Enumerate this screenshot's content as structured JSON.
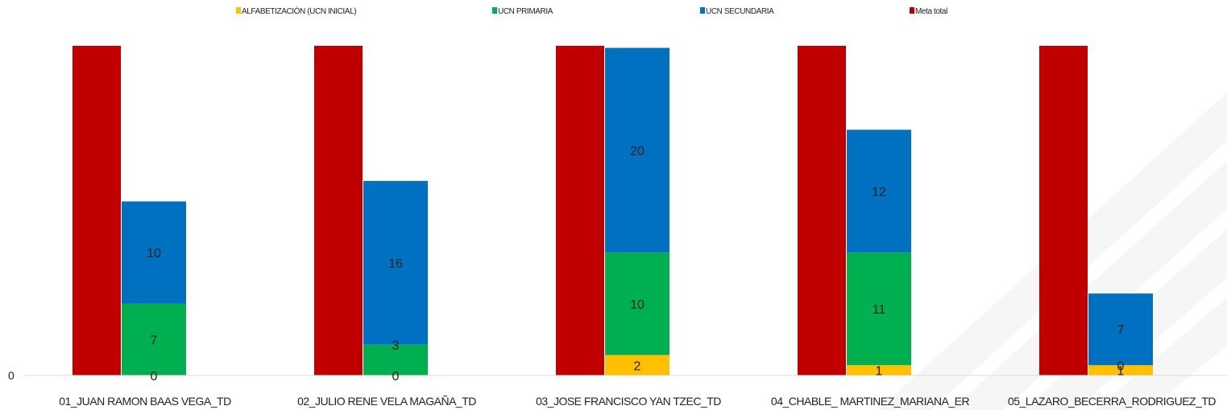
{
  "chart_data": {
    "type": "bar",
    "stacked": true,
    "categories": [
      "01_JUAN RAMON BAAS VEGA_TD",
      "02_JULIO RENE VELA MAGAÑA_TD",
      "03_JOSE FRANCISCO YAN TZEC_TD",
      "04_CHABLE_ MARTINEZ_MARIANA_ER",
      "05_LAZARO_BECERRA_RODRIGUEZ_TD"
    ],
    "series": [
      {
        "name": "ALFABETIZACIÓN (UCN INICIAL)",
        "color": "#FFC000",
        "stack": "avance",
        "values": [
          0,
          0,
          2,
          1,
          1
        ],
        "labels": [
          "0",
          "0",
          "2",
          "1",
          "1"
        ]
      },
      {
        "name": "UCN PRIMARIA",
        "color": "#00B050",
        "stack": "avance",
        "values": [
          7,
          3,
          10,
          11,
          0
        ],
        "labels": [
          "7",
          "3",
          "10",
          "11",
          "0"
        ]
      },
      {
        "name": "UCN SECUNDARIA",
        "color": "#0070C0",
        "stack": "avance",
        "values": [
          10,
          16,
          20,
          12,
          7
        ],
        "labels": [
          "10",
          "16",
          "20",
          "12",
          "7"
        ]
      },
      {
        "name": "Meta total",
        "color": "#C00000",
        "stack": "meta",
        "values": [
          32.2,
          32.2,
          32.2,
          32.2,
          32.2
        ],
        "labels": []
      }
    ],
    "y_ticks": [
      "0"
    ],
    "ylim": [
      0,
      32.2
    ],
    "grid": false,
    "legend_position": "top"
  }
}
